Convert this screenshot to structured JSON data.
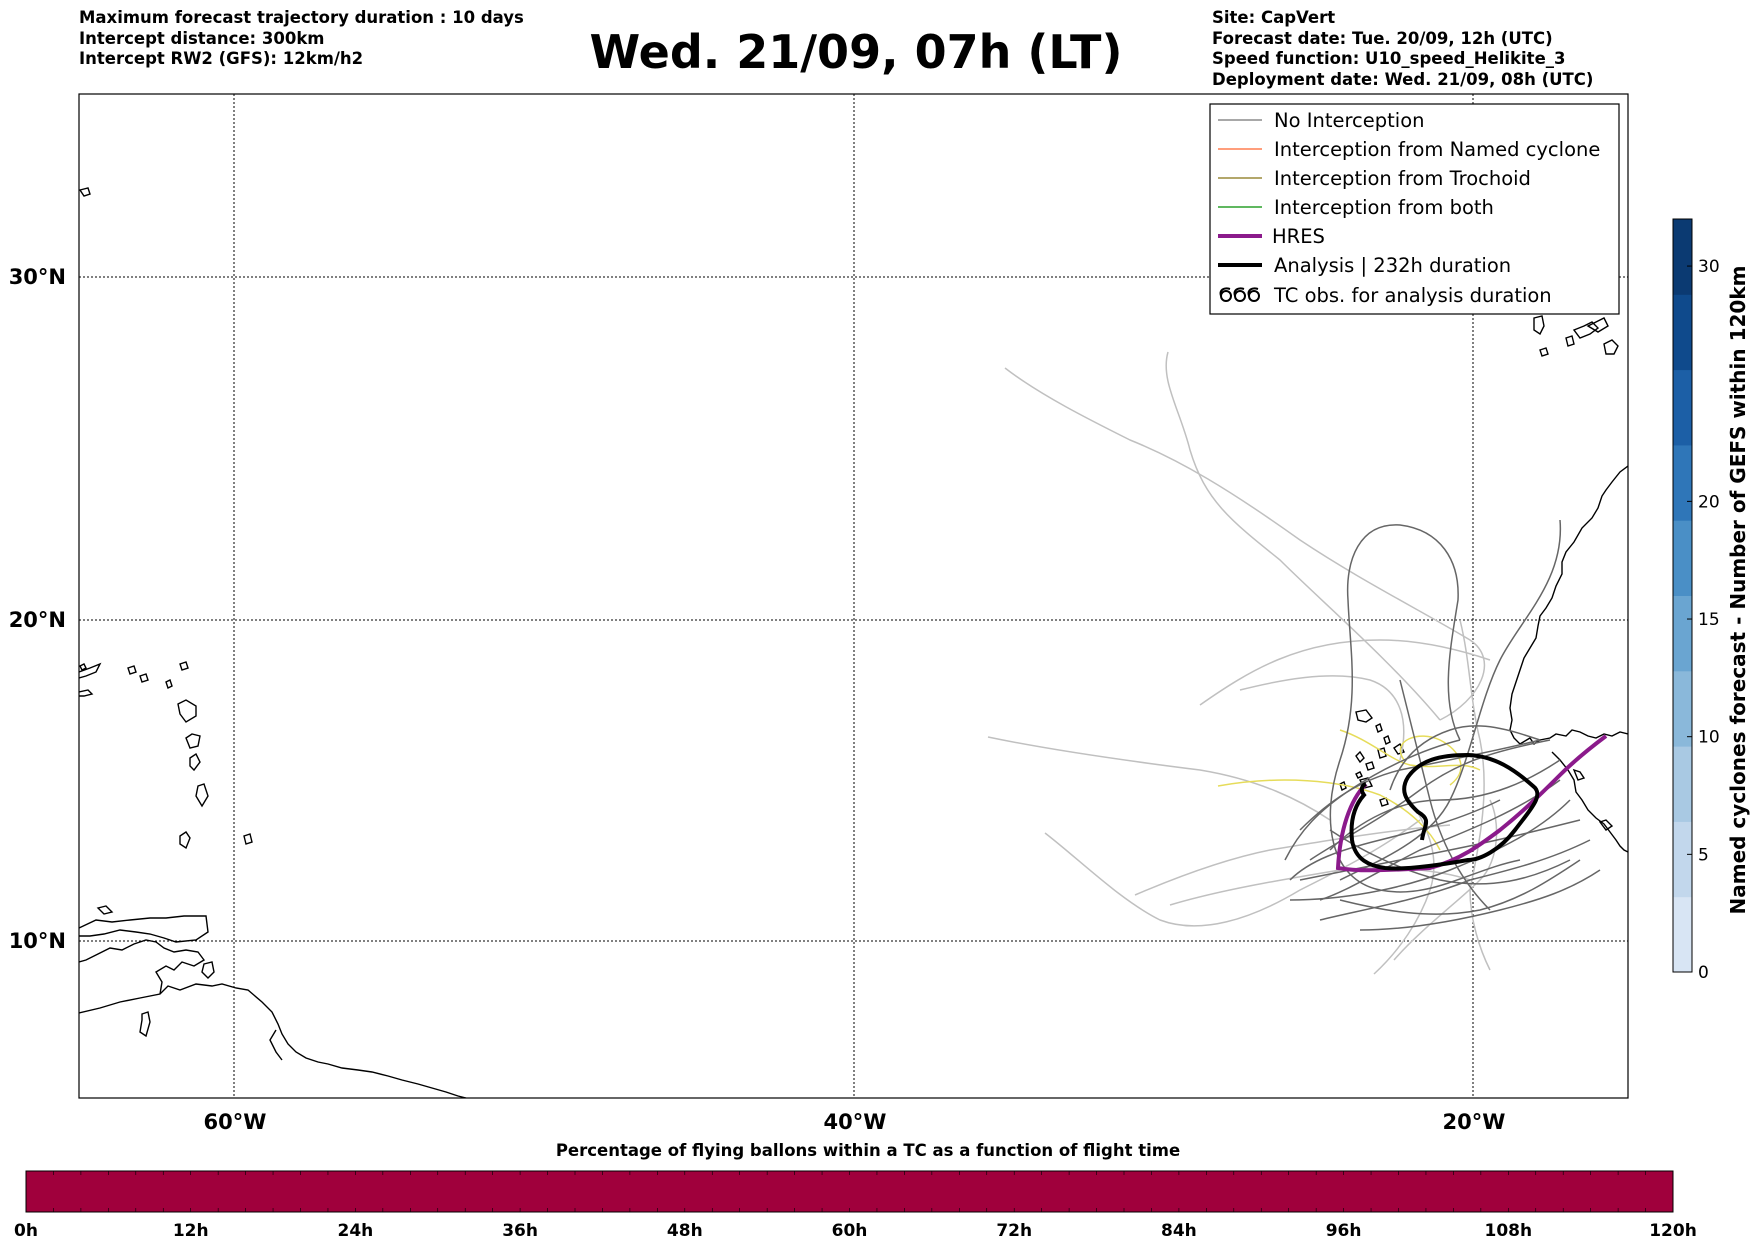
{
  "header": {
    "title": "Wed. 21/09, 07h (LT)",
    "left_lines": [
      "Maximum forecast trajectory duration : 10 days",
      "Intercept distance: 300km",
      "Intercept RW2 (GFS):  12km/h2"
    ],
    "right_lines": [
      "Site: CapVert",
      "Forecast date: Tue. 20/09, 12h (UTC)",
      "Speed function: U10_speed_Helikite_3",
      "Deployment date: Wed. 21/09, 08h (UTC)"
    ]
  },
  "map": {
    "lat_labels": [
      "30°N",
      "20°N",
      "10°N"
    ],
    "lon_labels": [
      "60°W",
      "40°W",
      "20°W"
    ],
    "gridlines": "dotted"
  },
  "legend": {
    "placement": "top-right",
    "items": [
      {
        "label": "No Interception",
        "color": "#8c8c8c",
        "style": "thin-line"
      },
      {
        "label": "Interception from Named cyclone",
        "color": "#ff7f50",
        "style": "thin-line"
      },
      {
        "label": "Interception from Trochoid",
        "color": "#9a8a3a",
        "style": "thin-line"
      },
      {
        "label": "Interception from both",
        "color": "#2ca02c",
        "style": "thin-line"
      },
      {
        "label": "HRES",
        "color": "#8b1a8b",
        "style": "thick-line"
      },
      {
        "label": "Analysis | 232h duration",
        "color": "#000000",
        "style": "thick-line"
      },
      {
        "label": "TC obs. for analysis duration",
        "color": "#000000",
        "style": "cyclone-symbols"
      }
    ]
  },
  "colorbar_right": {
    "label": "Named cyclones forecast - Number of GEFS within 120km",
    "ticks": [
      "0",
      "5",
      "10",
      "15",
      "20",
      "30"
    ],
    "tick_values": [
      0,
      5,
      10,
      15,
      20,
      30
    ],
    "range": [
      0,
      32
    ],
    "colors": [
      "#d8e5f4",
      "#c2d7ec",
      "#a9c9e3",
      "#8ab8da",
      "#6aa5d1",
      "#4a8fc6",
      "#2f76b8",
      "#1c5fa6",
      "#0f4a8c",
      "#0b3a72"
    ]
  },
  "colorbar_bottom": {
    "label": "Percentage of flying ballons within a TC as a function of flight time",
    "ticks": [
      "0h",
      "12h",
      "24h",
      "36h",
      "48h",
      "60h",
      "72h",
      "84h",
      "96h",
      "108h",
      "120h"
    ],
    "color": "#a0003c"
  },
  "colors": {
    "gefs_track": "#666666",
    "light_track": "#c0c0c0",
    "trochoid_track": "#e6dc5a",
    "hres_track": "#8b1a8b",
    "analysis_track": "#000000",
    "coastline": "#000000"
  }
}
